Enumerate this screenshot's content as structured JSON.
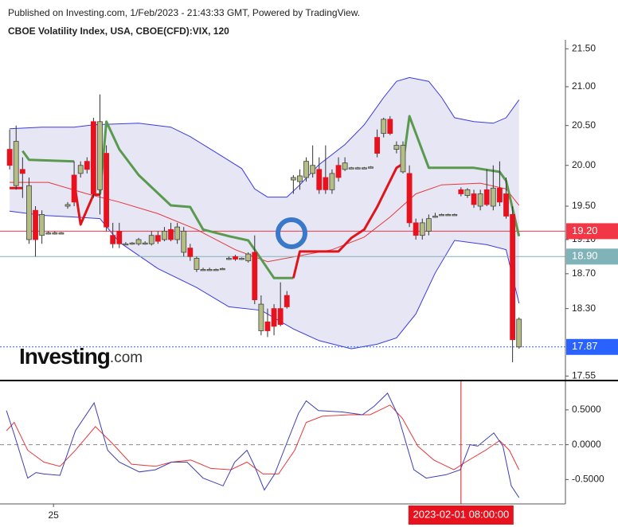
{
  "chart_data": {
    "type": "candlestick",
    "subtitle": "Published on Investing.com, 1/Feb/2023 - 21:43:33 GMT, Powered by TradingView.",
    "title": "CBOE Volatility Index, USA, CBOE(CFD):VIX, 120",
    "watermark": {
      "brand": "Investing",
      "suffix": ".com"
    },
    "xlim": [
      -1.5,
      86.2
    ],
    "xticks": [
      {
        "value": 6.8,
        "label": "25"
      }
    ],
    "ylim": [
      17.51,
      21.62
    ],
    "log_scale": true,
    "yticks": [
      {
        "value": 21.5,
        "label": "21.50"
      },
      {
        "value": 21.0,
        "label": "21.00"
      },
      {
        "value": 20.5,
        "label": "20.50"
      },
      {
        "value": 20.0,
        "label": "20.00"
      },
      {
        "value": 19.5,
        "label": "19.50"
      },
      {
        "value": 19.1,
        "label": "19.10"
      },
      {
        "value": 18.7,
        "label": "18.70"
      },
      {
        "value": 18.3,
        "label": "18.30"
      },
      {
        "value": 17.55,
        "label": "17.55"
      }
    ],
    "up_color": "#b3bd84",
    "down_color": "#e8121e",
    "open": [
      20.2,
      19.75,
      19.95,
      19.1,
      19.45,
      19.15,
      19.18,
      19.18,
      19.18,
      19.5,
      19.88,
      19.9,
      20.05,
      20.55,
      19.7,
      20.15,
      19.15,
      19.2,
      19.05,
      19.05,
      19.05,
      19.06,
      19.05,
      19.15,
      19.1,
      19.22,
      19.1,
      18.95,
      19.0,
      18.75,
      18.75,
      18.75,
      18.75,
      18.76,
      18.88,
      18.9,
      18.87,
      18.85,
      18.95,
      18.05,
      18.15,
      18.3,
      18.3,
      18.45,
      19.82,
      19.8,
      19.85,
      19.9,
      19.95,
      19.85,
      19.7,
      20.0,
      19.95,
      19.97,
      19.97,
      19.97,
      19.98,
      20.35,
      20.4,
      20.58,
      20.2,
      19.92,
      19.9,
      19.3,
      19.15,
      19.2,
      19.38,
      19.4,
      19.4,
      19.4,
      19.7,
      19.63,
      19.65,
      19.5,
      19.7,
      19.5,
      19.72,
      19.65,
      19.4,
      17.87
    ],
    "high": [
      20.45,
      20.5,
      20.1,
      19.85,
      19.5,
      19.45,
      19.2,
      19.2,
      19.19,
      19.55,
      20.05,
      20.05,
      20.1,
      20.6,
      20.9,
      20.25,
      19.3,
      19.3,
      19.07,
      19.07,
      19.12,
      19.08,
      19.2,
      19.2,
      19.25,
      19.3,
      19.3,
      19.25,
      19.05,
      18.9,
      18.77,
      18.77,
      18.76,
      18.77,
      18.9,
      18.92,
      18.89,
      18.95,
      19.15,
      18.45,
      18.3,
      18.35,
      18.6,
      18.5,
      19.88,
      19.95,
      20.1,
      20.25,
      20.1,
      20.25,
      19.95,
      20.1,
      20.1,
      19.98,
      19.98,
      19.98,
      19.99,
      20.45,
      20.6,
      20.62,
      20.3,
      20.3,
      20.0,
      19.35,
      19.35,
      19.4,
      19.42,
      19.41,
      19.41,
      19.41,
      19.73,
      19.72,
      19.7,
      19.7,
      19.95,
      20.0,
      20.05,
      19.85,
      19.5,
      18.2
    ],
    "low": [
      19.95,
      19.7,
      19.6,
      19.05,
      18.9,
      19.05,
      19.16,
      19.16,
      19.17,
      19.47,
      19.5,
      19.85,
      19.9,
      19.6,
      19.4,
      19.2,
      19.0,
      19.0,
      19.04,
      19.04,
      19.03,
      19.04,
      19.03,
      19.05,
      19.08,
      19.08,
      19.05,
      18.9,
      18.85,
      18.72,
      18.74,
      18.74,
      18.74,
      18.75,
      18.86,
      18.85,
      18.86,
      18.83,
      18.35,
      18.0,
      17.98,
      18.0,
      18.1,
      18.3,
      19.65,
      19.7,
      19.8,
      19.85,
      19.65,
      19.65,
      19.65,
      19.8,
      19.93,
      19.96,
      19.96,
      19.96,
      19.97,
      20.1,
      20.35,
      20.38,
      20.15,
      19.9,
      19.25,
      19.1,
      19.1,
      19.15,
      19.36,
      19.39,
      19.39,
      19.39,
      19.62,
      19.6,
      19.48,
      19.45,
      19.5,
      19.45,
      19.5,
      19.35,
      17.7,
      17.85
    ],
    "close": [
      20.0,
      20.3,
      19.9,
      19.75,
      19.1,
      19.4,
      19.18,
      19.18,
      19.18,
      19.52,
      19.55,
      20.0,
      19.95,
      19.65,
      20.55,
      19.25,
      19.05,
      19.05,
      19.05,
      19.06,
      19.1,
      19.06,
      19.15,
      19.08,
      19.2,
      19.1,
      19.25,
      19.2,
      18.9,
      18.88,
      18.75,
      18.75,
      18.75,
      18.76,
      18.88,
      18.87,
      18.88,
      18.93,
      18.4,
      18.35,
      18.05,
      18.1,
      18.12,
      18.32,
      19.85,
      19.87,
      20.05,
      20.0,
      19.7,
      19.7,
      19.9,
      19.85,
      20.03,
      19.97,
      19.97,
      19.97,
      19.98,
      20.15,
      20.58,
      20.4,
      20.25,
      20.25,
      19.3,
      19.15,
      19.3,
      19.35,
      19.38,
      19.4,
      19.4,
      19.4,
      19.65,
      19.7,
      19.52,
      19.65,
      19.52,
      19.72,
      19.55,
      19.38,
      17.95,
      18.18
    ],
    "band_fill": "#dcdcf0",
    "upper_band": {
      "color": "#3b3be0",
      "x": [
        0,
        5,
        10,
        13,
        20,
        25,
        28,
        30,
        33,
        36,
        38,
        40,
        43,
        45,
        48,
        52,
        55,
        58,
        60,
        62,
        65,
        67,
        69,
        72,
        75,
        77,
        79
      ],
      "values": [
        20.46,
        20.48,
        20.48,
        20.51,
        20.53,
        20.48,
        20.36,
        20.26,
        20.11,
        19.96,
        19.71,
        19.61,
        19.61,
        19.76,
        20.01,
        20.26,
        20.51,
        20.86,
        21.07,
        21.12,
        21.07,
        20.86,
        20.6,
        20.55,
        20.53,
        20.6,
        20.83
      ]
    },
    "middle_band": {
      "color": "#e8383a",
      "x": [
        0,
        6,
        12,
        17,
        23,
        29,
        35,
        40,
        45,
        50,
        55,
        59,
        63,
        67,
        73,
        77,
        79
      ],
      "values": [
        19.79,
        19.79,
        19.65,
        19.55,
        19.41,
        19.22,
        18.98,
        18.84,
        18.91,
        18.98,
        19.13,
        19.37,
        19.65,
        19.76,
        19.78,
        19.71,
        19.51
      ]
    },
    "lower_band": {
      "color": "#3b3be0",
      "x": [
        0,
        5,
        10,
        14,
        17,
        23,
        29,
        34,
        39,
        44,
        48,
        53,
        57,
        60,
        63,
        66,
        69,
        74,
        77,
        79
      ],
      "values": [
        19.44,
        19.39,
        19.37,
        19.35,
        19.07,
        18.76,
        18.54,
        18.32,
        18.28,
        18.07,
        17.94,
        17.85,
        17.9,
        17.97,
        18.24,
        18.71,
        19.09,
        19.04,
        18.98,
        18.36
      ]
    },
    "stop_up": {
      "color": "#e0151c",
      "x": [
        0,
        2,
        5,
        10,
        11,
        13,
        14,
        30,
        44,
        45,
        51,
        53,
        55,
        57,
        60,
        61
      ],
      "values": [
        19.72,
        19.72,
        null,
        19.8,
        19.28,
        19.64,
        19.64,
        null,
        18.65,
        18.96,
        18.96,
        19.12,
        19.22,
        19.49,
        19.97,
        20.02
      ]
    },
    "stop_down": {
      "color": "#5a9a4e",
      "x": [
        2,
        3,
        10,
        12,
        14,
        15,
        17,
        20,
        25,
        28,
        30,
        34,
        37,
        38,
        41,
        44,
        50,
        61,
        62,
        65,
        72,
        76,
        77,
        79
      ],
      "values": [
        20.18,
        20.07,
        20.05,
        null,
        19.64,
        20.55,
        20.2,
        19.88,
        19.51,
        19.49,
        19.22,
        19.14,
        19.09,
        18.98,
        18.65,
        18.65,
        null,
        20.02,
        20.62,
        19.97,
        19.97,
        19.92,
        19.81,
        19.14
      ]
    },
    "price_lines": [
      {
        "value": 19.2,
        "label": "19.20",
        "color": "#f23645"
      },
      {
        "value": 18.9,
        "label": "18.90",
        "color": "#7fb3b8"
      },
      {
        "value": 17.87,
        "label": "17.87",
        "color": "#2962ff"
      }
    ],
    "crosshair": {
      "x": 70,
      "label": "2023-02-01 08:00:00",
      "color": "#e8121e"
    },
    "oscillator": {
      "ylim": [
        -0.85,
        0.91
      ],
      "yticks": [
        {
          "value": 0.5,
          "label": "0.5000"
        },
        {
          "value": 0,
          "label": "0.0000"
        },
        {
          "value": -0.5,
          "label": "-0.5000"
        }
      ],
      "k": {
        "color": "#3d3db8",
        "x": [
          -0.5,
          0.7,
          2.8,
          4.1,
          5.3,
          7.8,
          10.2,
          13.1,
          15.2,
          17,
          20.1,
          22.6,
          25.1,
          27.5,
          30,
          33.1,
          34.9,
          36.8,
          38,
          39.5,
          41.1,
          43,
          44.8,
          46,
          47.9,
          51.6,
          54.7,
          56.5,
          58.6,
          60.2,
          62.7,
          64.6,
          67.7,
          69.9,
          71.4,
          72.6,
          75.1,
          76.5,
          77.8,
          79
        ],
        "values": [
          0.49,
          0.15,
          -0.48,
          -0.4,
          -0.42,
          -0.44,
          0.2,
          0.6,
          -0.08,
          -0.25,
          -0.39,
          -0.36,
          -0.25,
          -0.25,
          -0.48,
          -0.59,
          -0.25,
          -0.08,
          -0.31,
          -0.65,
          -0.42,
          0.03,
          0.45,
          0.63,
          0.49,
          0.47,
          0.43,
          0.55,
          0.74,
          0.43,
          -0.36,
          -0.48,
          -0.43,
          -0.36,
          0,
          -0.02,
          0.17,
          -0.02,
          -0.59,
          -0.76
        ]
      },
      "d": {
        "color": "#e8383a",
        "x": [
          -0.5,
          0.7,
          2.8,
          5.3,
          7.8,
          10.2,
          13.3,
          15.8,
          18.9,
          22.6,
          25.1,
          28.1,
          31.2,
          34.3,
          36.8,
          39.3,
          41.7,
          44.2,
          46,
          48.5,
          52.8,
          55.9,
          59,
          60.9,
          63.3,
          65.8,
          68.9,
          70.7,
          73.8,
          76,
          77.5,
          79
        ],
        "values": [
          0.2,
          0.32,
          -0.08,
          -0.25,
          -0.31,
          -0.08,
          0.26,
          0.03,
          -0.28,
          -0.31,
          -0.25,
          -0.22,
          -0.34,
          -0.36,
          -0.25,
          -0.42,
          -0.42,
          -0.08,
          0.32,
          0.41,
          0.43,
          0.43,
          0.57,
          0.38,
          -0.02,
          -0.22,
          -0.36,
          -0.25,
          -0.08,
          0.06,
          -0.08,
          -0.36
        ]
      }
    }
  }
}
